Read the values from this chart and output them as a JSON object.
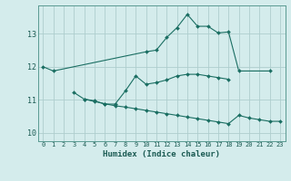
{
  "title": "",
  "xlabel": "Humidex (Indice chaleur)",
  "ylabel": "",
  "background_color": "#d4ecec",
  "grid_color": "#aecece",
  "line_color": "#1a6e62",
  "xlim": [
    -0.5,
    23.5
  ],
  "ylim": [
    9.75,
    13.85
  ],
  "yticks": [
    10,
    11,
    12,
    13
  ],
  "xticks": [
    0,
    1,
    2,
    3,
    4,
    5,
    6,
    7,
    8,
    9,
    10,
    11,
    12,
    13,
    14,
    15,
    16,
    17,
    18,
    19,
    20,
    21,
    22,
    23
  ],
  "series": [
    {
      "x": [
        0,
        1,
        10,
        11,
        12,
        13,
        14,
        15,
        16,
        17,
        18,
        19,
        22
      ],
      "y": [
        12.0,
        11.87,
        12.45,
        12.5,
        12.88,
        13.18,
        13.58,
        13.22,
        13.22,
        13.02,
        13.05,
        11.87,
        11.87
      ]
    },
    {
      "x": [
        3,
        4,
        5,
        6,
        7,
        8,
        9,
        10,
        11,
        12,
        13,
        14,
        15,
        16,
        17,
        18
      ],
      "y": [
        11.22,
        11.02,
        10.97,
        10.87,
        10.87,
        11.27,
        11.72,
        11.47,
        11.52,
        11.6,
        11.72,
        11.77,
        11.77,
        11.72,
        11.67,
        11.62
      ]
    },
    {
      "x": [
        4,
        5,
        6,
        7,
        8,
        9,
        10,
        11,
        12,
        13,
        14,
        15,
        16,
        17,
        18,
        19,
        20,
        21,
        22,
        23
      ],
      "y": [
        11.02,
        10.95,
        10.88,
        10.82,
        10.78,
        10.73,
        10.68,
        10.63,
        10.58,
        10.53,
        10.48,
        10.43,
        10.38,
        10.33,
        10.28,
        10.53,
        10.45,
        10.4,
        10.35,
        10.35
      ]
    }
  ]
}
